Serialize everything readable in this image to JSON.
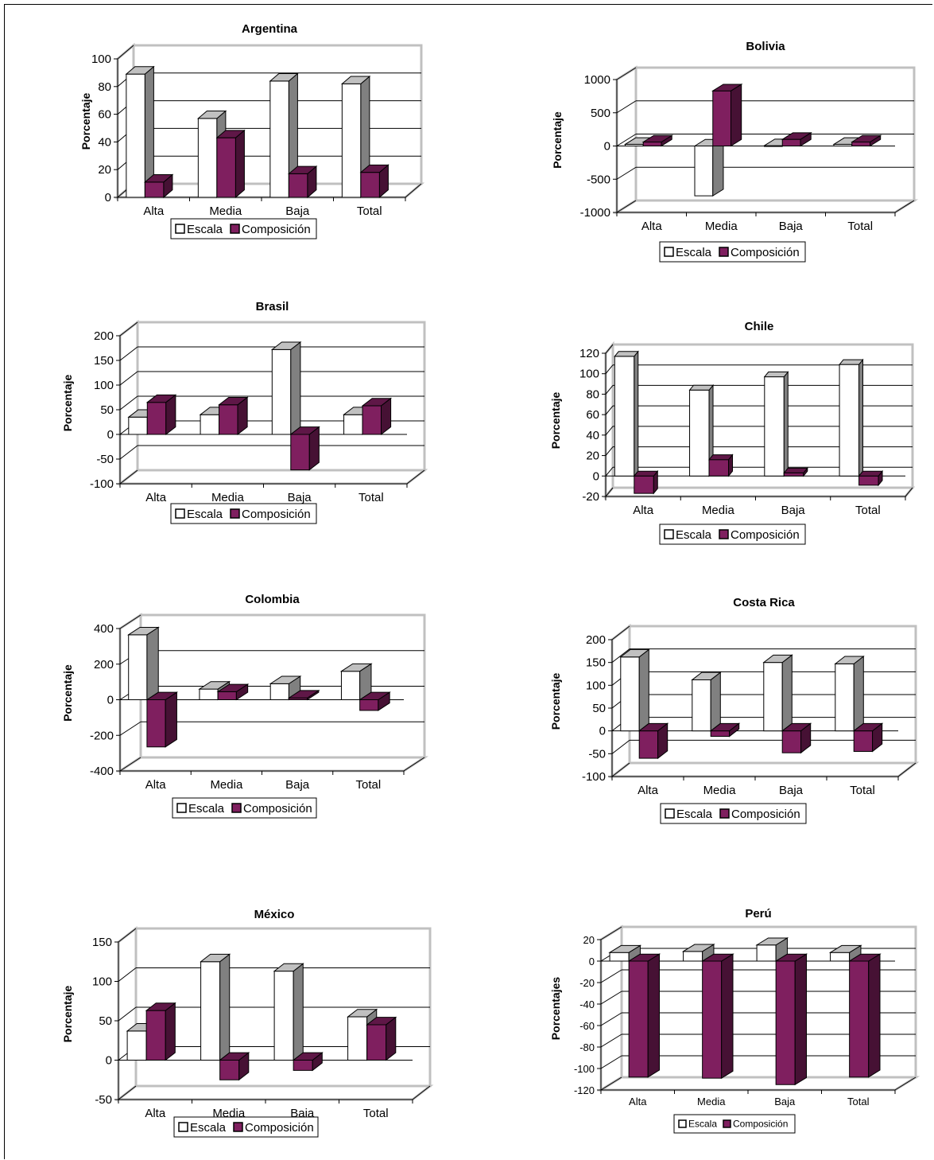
{
  "page": {
    "background": "#ffffff"
  },
  "colors": {
    "escala": "#ffffff",
    "composicion": "#7f1f5f",
    "wall": "#c0c0c0",
    "grid": "#000000"
  },
  "chart_data": [
    {
      "id": "argentina",
      "type": "bar",
      "title": "Argentina",
      "ylabel": "Porcentaje",
      "categories": [
        "Alta",
        "Media",
        "Baja",
        "Total"
      ],
      "ylim": [
        0,
        100
      ],
      "yticks": [
        0,
        20,
        40,
        60,
        80,
        100
      ],
      "series": [
        {
          "name": "Escala",
          "values": [
            89,
            57,
            84,
            82
          ]
        },
        {
          "name": "Composición",
          "values": [
            11,
            43,
            17,
            18
          ]
        }
      ],
      "legend": "bottom",
      "grid": true
    },
    {
      "id": "bolivia",
      "type": "bar",
      "title": "Bolivia",
      "ylabel": "Porcentaje",
      "categories": [
        "Alta",
        "Media",
        "Baja",
        "Total"
      ],
      "ylim": [
        -1000,
        1000
      ],
      "yticks": [
        -1000,
        -500,
        0,
        500,
        1000
      ],
      "series": [
        {
          "name": "Escala",
          "values": [
            25,
            -750,
            5,
            25
          ]
        },
        {
          "name": "Composición",
          "values": [
            60,
            830,
            100,
            60
          ]
        }
      ],
      "legend": "bottom",
      "grid": true
    },
    {
      "id": "brasil",
      "type": "bar",
      "title": "Brasil",
      "ylabel": "Porcentaje",
      "categories": [
        "Alta",
        "Media",
        "Baja",
        "Total"
      ],
      "ylim": [
        -100,
        200
      ],
      "yticks": [
        -100,
        -50,
        0,
        50,
        100,
        150,
        200
      ],
      "series": [
        {
          "name": "Escala",
          "values": [
            35,
            40,
            172,
            40
          ]
        },
        {
          "name": "Composición",
          "values": [
            65,
            60,
            -72,
            58
          ]
        }
      ],
      "legend": "bottom",
      "grid": true
    },
    {
      "id": "chile",
      "type": "bar",
      "title": "Chile",
      "ylabel": "Porcentaje",
      "categories": [
        "Alta",
        "Media",
        "Baja",
        "Total"
      ],
      "ylim": [
        -20,
        120
      ],
      "yticks": [
        -20,
        0,
        20,
        40,
        60,
        80,
        100,
        120
      ],
      "series": [
        {
          "name": "Escala",
          "values": [
            117,
            84,
            97,
            109
          ]
        },
        {
          "name": "Composición",
          "values": [
            -17,
            16,
            3,
            -9
          ]
        }
      ],
      "legend": "bottom",
      "grid": true
    },
    {
      "id": "colombia",
      "type": "bar",
      "title": "Colombia",
      "ylabel": "Porcentaje",
      "categories": [
        "Alta",
        "Media",
        "Baja",
        "Total"
      ],
      "ylim": [
        -400,
        400
      ],
      "yticks": [
        -400,
        -200,
        0,
        200,
        400
      ],
      "series": [
        {
          "name": "Escala",
          "values": [
            365,
            60,
            90,
            160
          ]
        },
        {
          "name": "Composición",
          "values": [
            -265,
            45,
            10,
            -60
          ]
        }
      ],
      "legend": "bottom",
      "grid": true
    },
    {
      "id": "costa-rica",
      "type": "bar",
      "title": "Costa Rica",
      "ylabel": "Porcentaje",
      "categories": [
        "Alta",
        "Media",
        "Baja",
        "Total"
      ],
      "ylim": [
        -100,
        200
      ],
      "yticks": [
        -100,
        -50,
        0,
        50,
        100,
        150,
        200
      ],
      "series": [
        {
          "name": "Escala",
          "values": [
            162,
            112,
            150,
            147
          ]
        },
        {
          "name": "Composición",
          "values": [
            -60,
            -12,
            -48,
            -45
          ]
        }
      ],
      "legend": "bottom",
      "grid": true
    },
    {
      "id": "mexico",
      "type": "bar",
      "title": "México",
      "ylabel": "Porcentaje",
      "categories": [
        "Alta",
        "Media",
        "Baja",
        "Total"
      ],
      "ylim": [
        -50,
        150
      ],
      "yticks": [
        -50,
        0,
        50,
        100,
        150
      ],
      "series": [
        {
          "name": "Escala",
          "values": [
            37,
            125,
            113,
            55
          ]
        },
        {
          "name": "Composición",
          "values": [
            63,
            -25,
            -13,
            45
          ]
        }
      ],
      "legend": "bottom",
      "grid": true
    },
    {
      "id": "peru",
      "type": "bar",
      "title": "Perú",
      "ylabel": "Porcentajes",
      "categories": [
        "Alta",
        "Media",
        "Baja",
        "Total"
      ],
      "ylim": [
        -120,
        20
      ],
      "yticks": [
        -120,
        -100,
        -80,
        -60,
        -40,
        -20,
        0,
        20
      ],
      "series": [
        {
          "name": "Escala",
          "values": [
            8,
            9,
            15,
            8
          ]
        },
        {
          "name": "Composición",
          "values": [
            -108,
            -109,
            -115,
            -108
          ]
        }
      ],
      "legend": "bottom",
      "grid": true,
      "small_text": true
    }
  ]
}
